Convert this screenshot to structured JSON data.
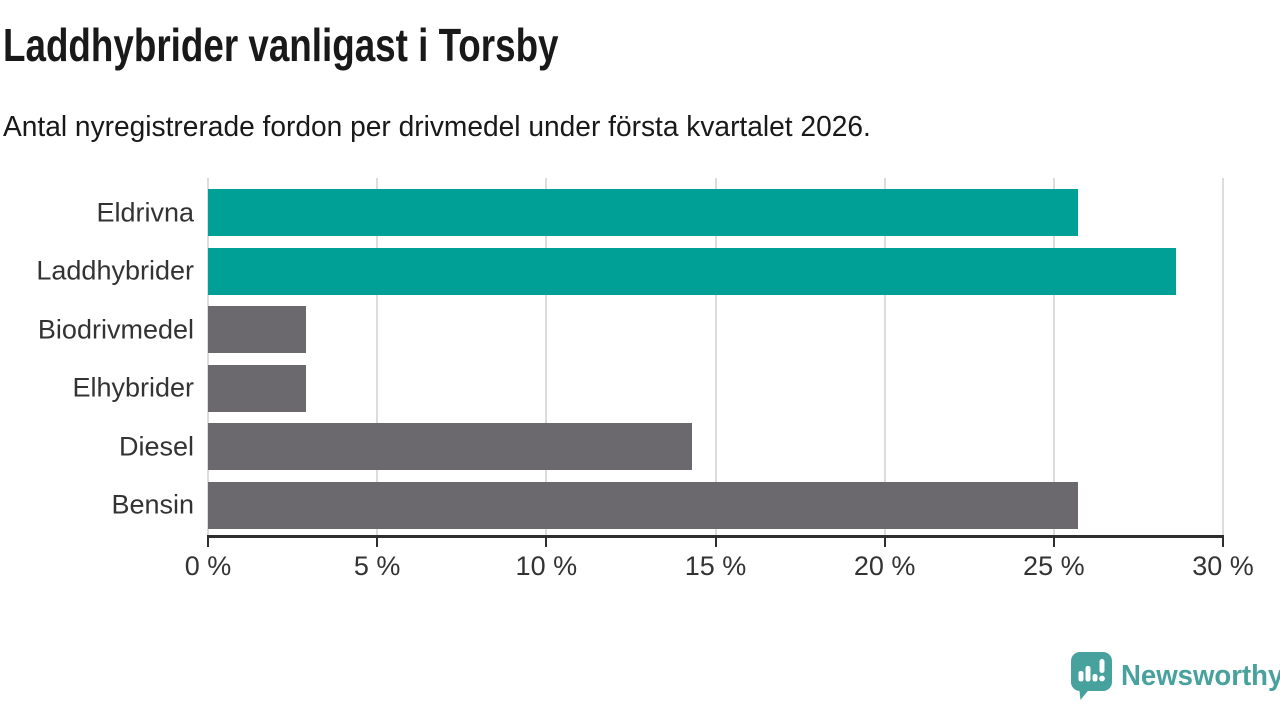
{
  "chart_data": {
    "type": "bar",
    "orientation": "horizontal",
    "title": "Laddhybrider vanligast i Torsby",
    "subtitle": "Antal nyregistrerade fordon per drivmedel under första kvartalet 2026.",
    "categories": [
      "Eldrivna",
      "Laddhybrider",
      "Biodrivmedel",
      "Elhybrider",
      "Diesel",
      "Bensin"
    ],
    "values": [
      25.7,
      28.6,
      2.9,
      2.9,
      14.3,
      25.7
    ],
    "unit": "%",
    "xlim": [
      0,
      30
    ],
    "x_ticks": [
      0,
      5,
      10,
      15,
      20,
      25,
      30
    ],
    "x_tick_labels": [
      "0 %",
      "5 %",
      "10 %",
      "15 %",
      "20 %",
      "25 %",
      "30 %"
    ],
    "grid": true,
    "legend": "none",
    "bar_palette": [
      "#00a096",
      "#00a096",
      "#6c696e",
      "#6c696e",
      "#6c696e",
      "#6c696e"
    ]
  },
  "colors": {
    "title_text": "#191919",
    "label_text": "#333333",
    "axis": "#2e2e2e",
    "grid": "#dcdcdd",
    "brand": "#47a19c",
    "bar_highlight": "#00a096",
    "bar_default": "#6c696e"
  },
  "branding": {
    "name": "Newsworthy",
    "icon": "bar-chart-speech-bubble"
  }
}
